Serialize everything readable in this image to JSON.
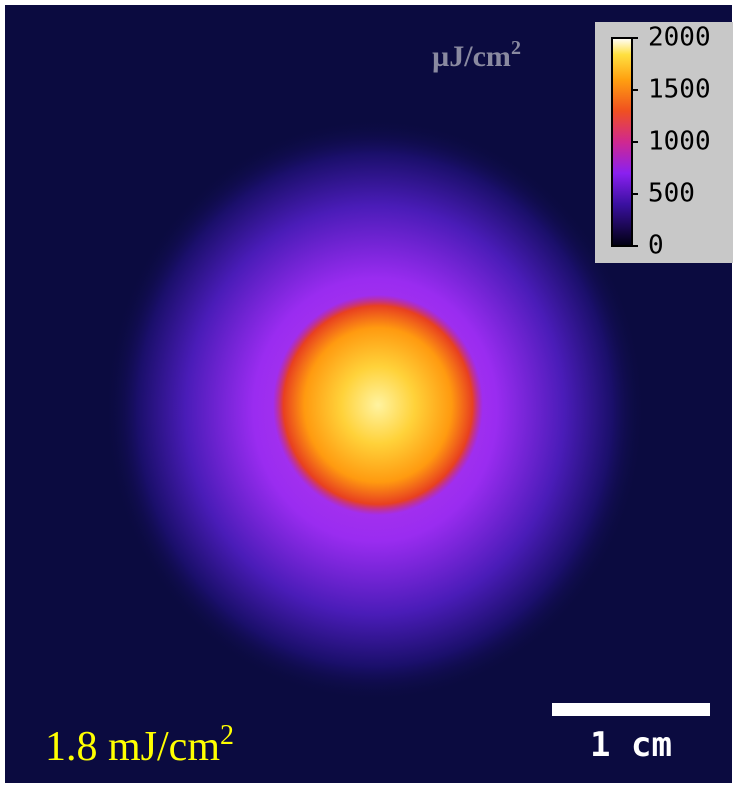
{
  "colorbar": {
    "unit": "µJ/cm",
    "unit_superscript": "2",
    "range": [
      0,
      2000
    ],
    "ticks": [
      0,
      500,
      1000,
      1500,
      2000
    ]
  },
  "fluence_label": {
    "text": "1.8 mJ/cm",
    "superscript": "2"
  },
  "scale_bar": {
    "label": "1 cm"
  }
}
